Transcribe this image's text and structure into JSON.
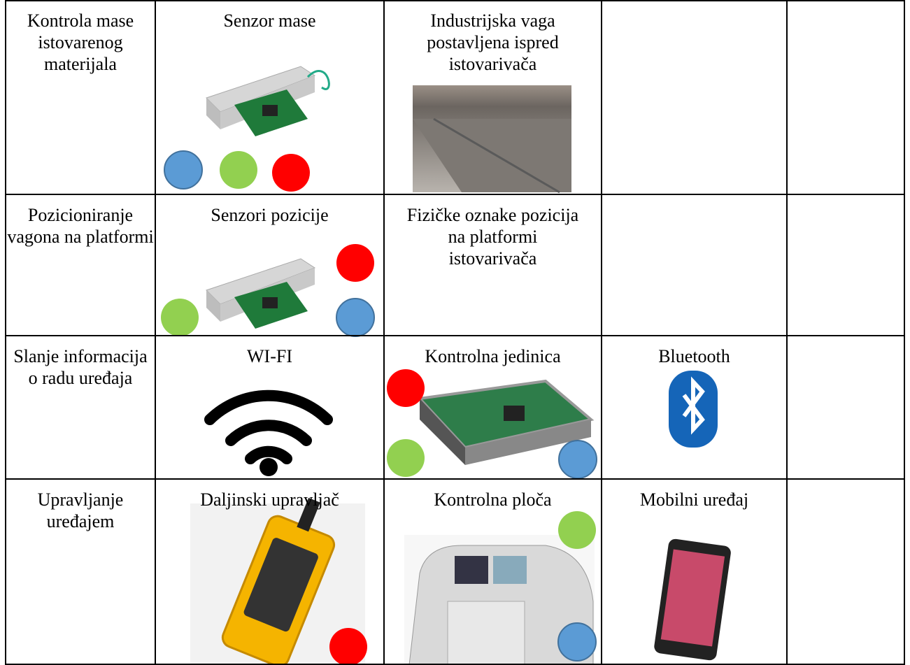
{
  "table": {
    "rows": [
      {
        "label": "Kontrola mase istovarenog materijala",
        "items": [
          "Senzor mase",
          "Industrijska vaga postavljena ispred istovarivača"
        ]
      },
      {
        "label": "Pozicioniranje vagona na platformi",
        "items": [
          "Senzori pozicije",
          "Fizičke oznake pozicija na platformi istovarivača"
        ]
      },
      {
        "label": "Slanje informacija o radu uređaja",
        "items": [
          "WI-FI",
          "Kontrolna jedinica",
          "Bluetooth"
        ]
      },
      {
        "label": "Upravljanje uređajem",
        "items": [
          "Daljinski upravljač",
          "Kontrolna ploča",
          "Mobilni uređaj"
        ]
      }
    ]
  }
}
